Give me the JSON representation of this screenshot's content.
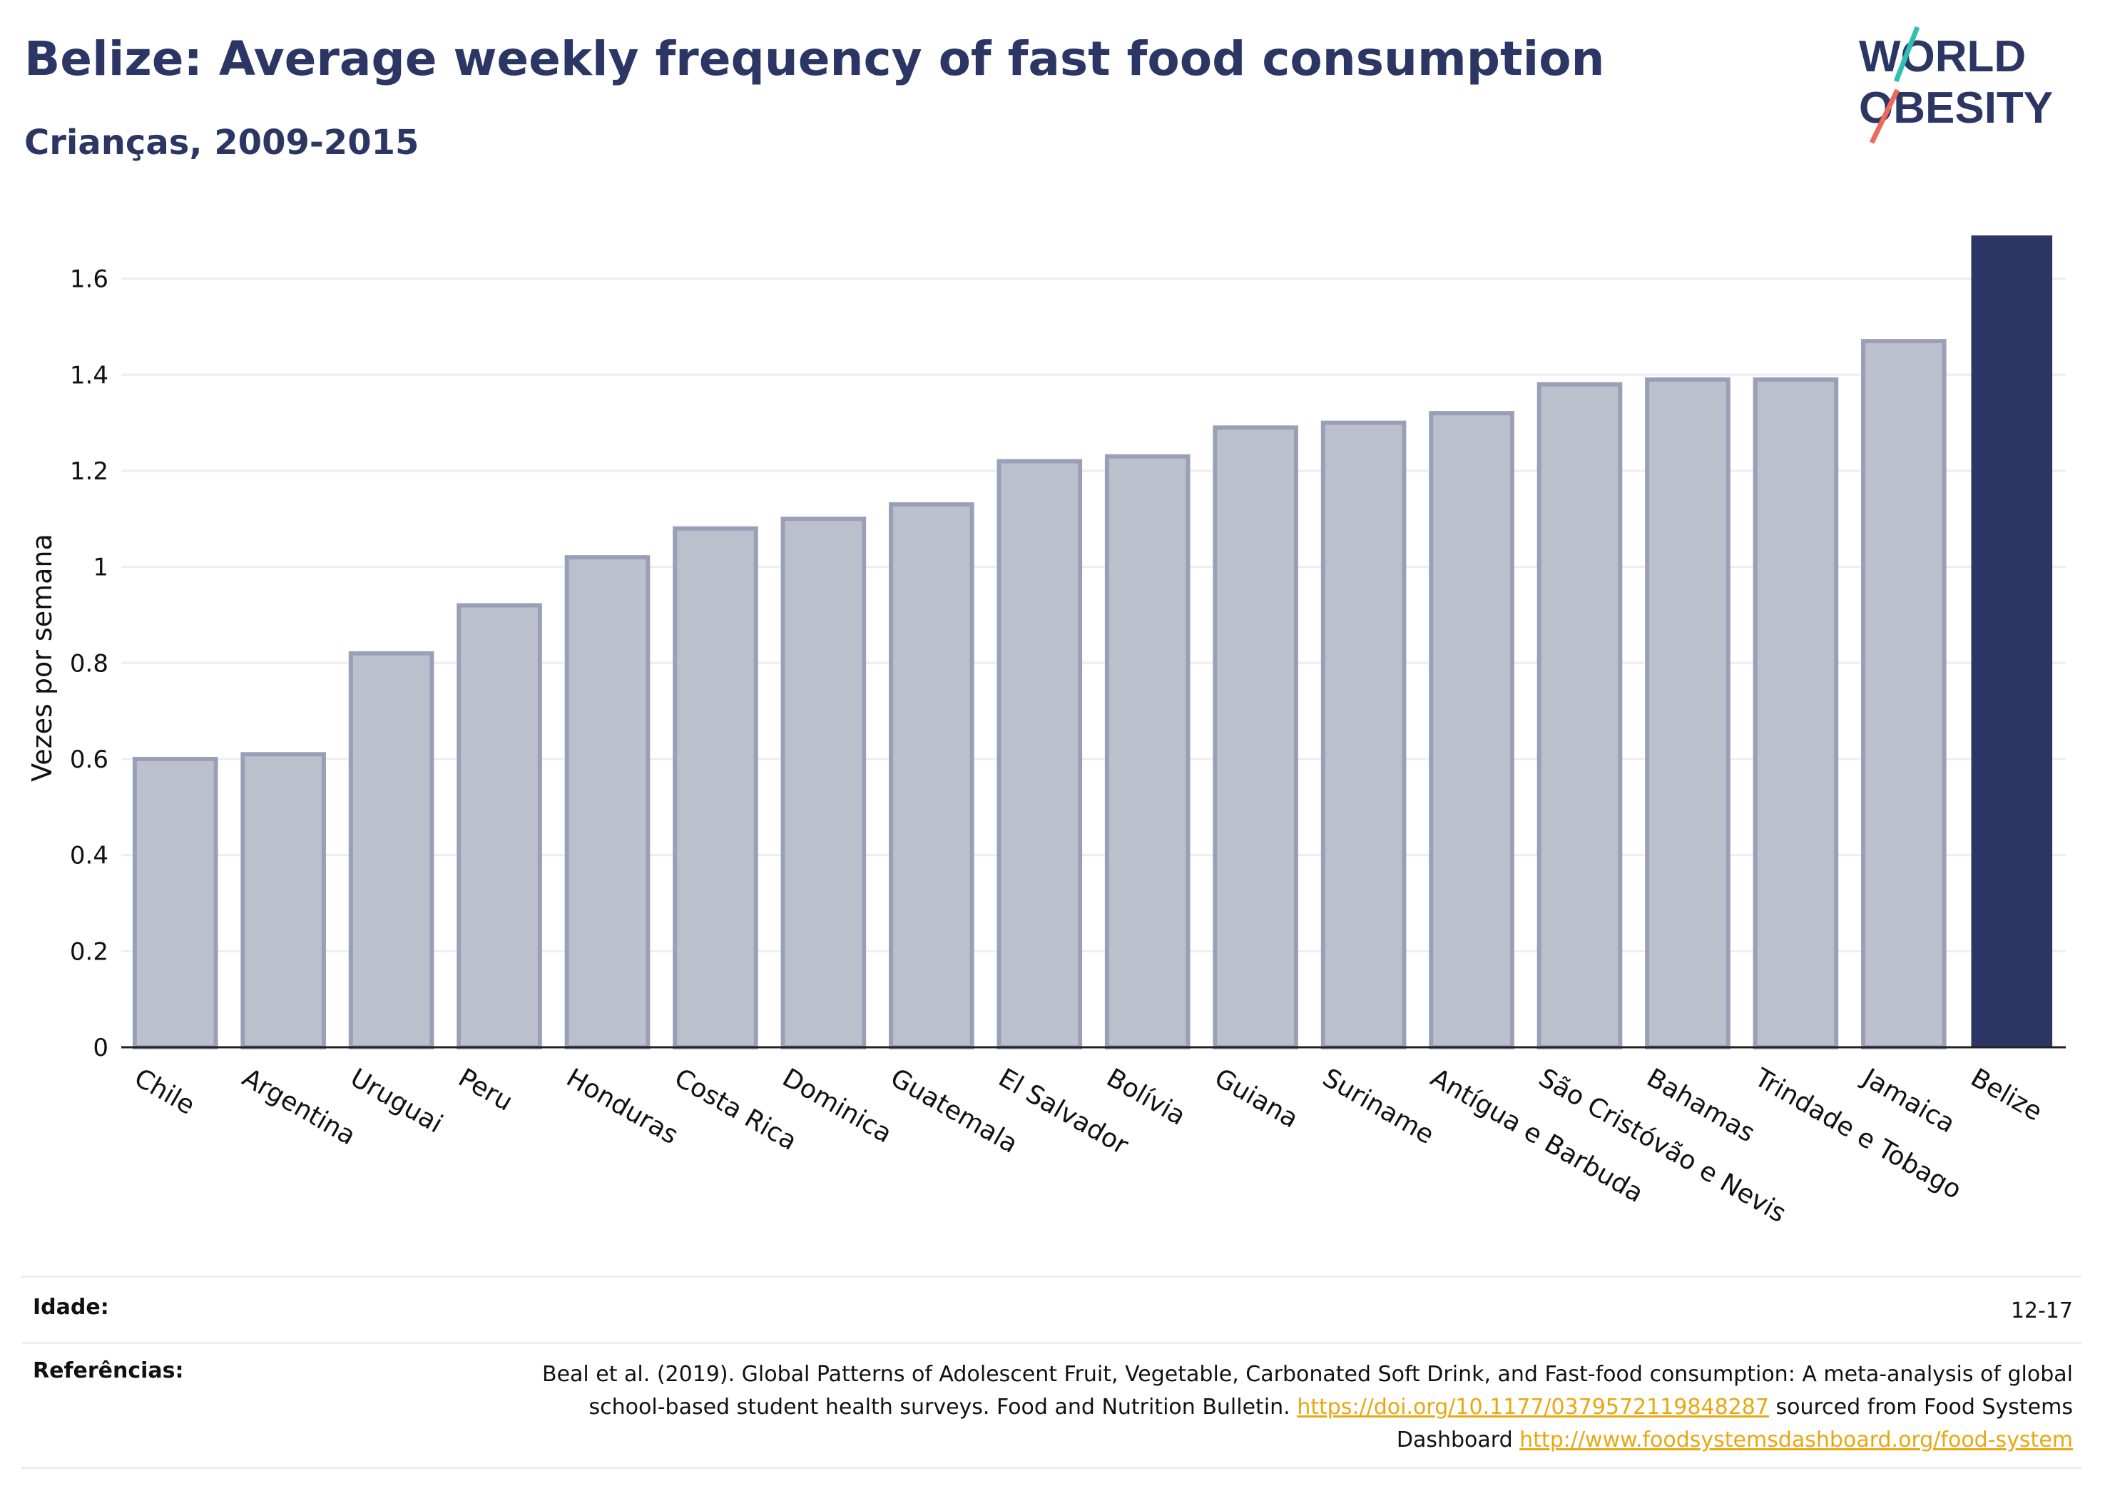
{
  "header": {
    "title": "Belize: Average weekly frequency of fast food consumption",
    "subtitle": "Crianças, 2009-2015"
  },
  "logo": {
    "line1": "WORLD",
    "line2": "OBESITY"
  },
  "chart_data": {
    "type": "bar",
    "categories": [
      "Chile",
      "Argentina",
      "Uruguai",
      "Peru",
      "Honduras",
      "Costa Rica",
      "Dominica",
      "Guatemala",
      "El Salvador",
      "Bolívia",
      "Guiana",
      "Suriname",
      "Antígua e Barbuda",
      "São Cristóvão e Nevis",
      "Bahamas",
      "Trindade e Tobago",
      "Jamaica",
      "Belize"
    ],
    "values": [
      0.6,
      0.61,
      0.82,
      0.92,
      1.02,
      1.08,
      1.1,
      1.13,
      1.22,
      1.23,
      1.29,
      1.3,
      1.32,
      1.38,
      1.39,
      1.39,
      1.47,
      1.69
    ],
    "highlight": "Belize",
    "xlabel": "",
    "ylabel": "Vezes por semana",
    "ylim": [
      0,
      1.69
    ],
    "yticks": [
      0,
      0.2,
      0.4,
      0.6,
      0.8,
      1,
      1.2,
      1.4,
      1.6
    ],
    "ytick_labels": [
      "0",
      "0.2",
      "0.4",
      "0.6",
      "0.8",
      "1",
      "1.2",
      "1.4",
      "1.6"
    ],
    "grid": true,
    "colors": {
      "bar_fill": "#bcc0cd",
      "bar_stroke": "#9a9fb8",
      "highlight_fill": "#2b3664",
      "grid": "#eceef3",
      "axis": "#222222"
    }
  },
  "footer": {
    "age_label": "Idade:",
    "age_value": "12-17",
    "ref_label": "Referências:",
    "ref_text_1": "Beal et al. (2019). Global Patterns of Adolescent Fruit, Vegetable, Carbonated Soft Drink, and Fast-food consumption: A meta-analysis of global school-based student health surveys. Food and Nutrition Bulletin. ",
    "ref_link_1": "https://doi.org/10.1177/0379572119848287",
    "ref_text_2": " sourced from Food Systems Dashboard ",
    "ref_link_2": "http://www.foodsystemsdashboard.org/food-system"
  }
}
